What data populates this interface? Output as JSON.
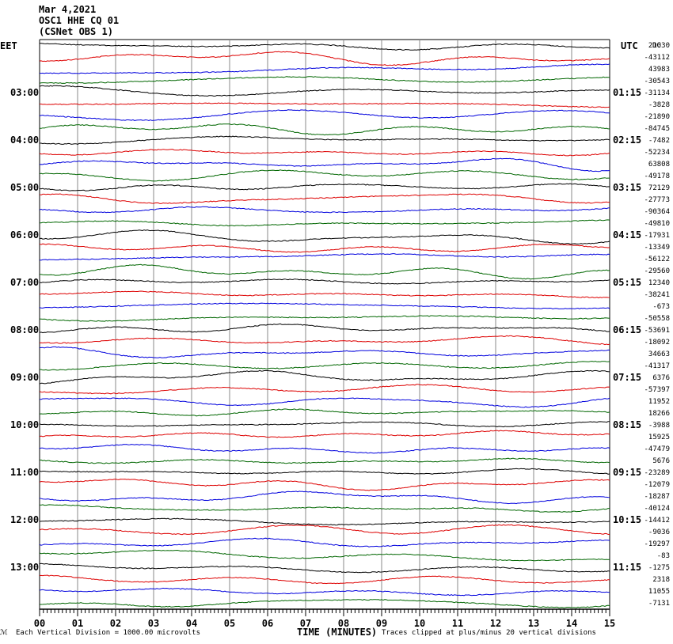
{
  "header": {
    "line1": "Mar 4,2021",
    "line2": "OSC1 HHE CQ 01",
    "line3": "(CSNet OBS 1)"
  },
  "left_zone": "EET",
  "right_zone": "UTC",
  "dc_label": "DC",
  "footer": {
    "scale_note": "Each Vertical Division = 1000.00 microvolts",
    "axis_title": "TIME (MINUTES)",
    "clip_note": "Traces clipped at plus/minus 20 vertical divisions",
    "corner_mark": "ℳ"
  },
  "chart_data": {
    "type": "line",
    "title": "OSC1 HHE CQ 01",
    "xlabel": "TIME (MINUTES)",
    "xlim": [
      0,
      15
    ],
    "x_ticks": [
      "00",
      "01",
      "02",
      "03",
      "04",
      "05",
      "06",
      "07",
      "08",
      "09",
      "10",
      "11",
      "12",
      "13",
      "14",
      "15"
    ],
    "trace_interval_minutes": 15,
    "trace_count": 48,
    "trace_colors": [
      "#000000",
      "#dd0000",
      "#0000dd",
      "#006600"
    ],
    "left_time_labels": [
      "03:00",
      "04:00",
      "05:00",
      "06:00",
      "07:00",
      "08:00",
      "09:00",
      "10:00",
      "11:00",
      "12:00",
      "13:00"
    ],
    "right_time_labels": [
      "01:15",
      "02:15",
      "03:15",
      "04:15",
      "05:15",
      "06:15",
      "07:15",
      "08:15",
      "09:15",
      "10:15",
      "11:15"
    ],
    "dc_offsets": [
      "21030",
      "-43112",
      "43983",
      "-30543",
      "-31134",
      "-3828",
      "-21890",
      "-84745",
      "-7482",
      "-52234",
      "63808",
      "-49178",
      "72129",
      "-27773",
      "-90364",
      "-49810",
      "-17931",
      "-13349",
      "-56122",
      "-29560",
      "12340",
      "-38241",
      "-673",
      "-50558",
      "-53691",
      "-18092",
      "34663",
      "-41317",
      "6376",
      "-57397",
      "11952",
      "18266",
      "-3988",
      "15925",
      "-47479",
      "5676",
      "-23289",
      "-12079",
      "-18287",
      "-40124",
      "-14412",
      "-9036",
      "-19297",
      "-83",
      "-1275",
      "2318",
      "11055",
      "-7131"
    ]
  }
}
